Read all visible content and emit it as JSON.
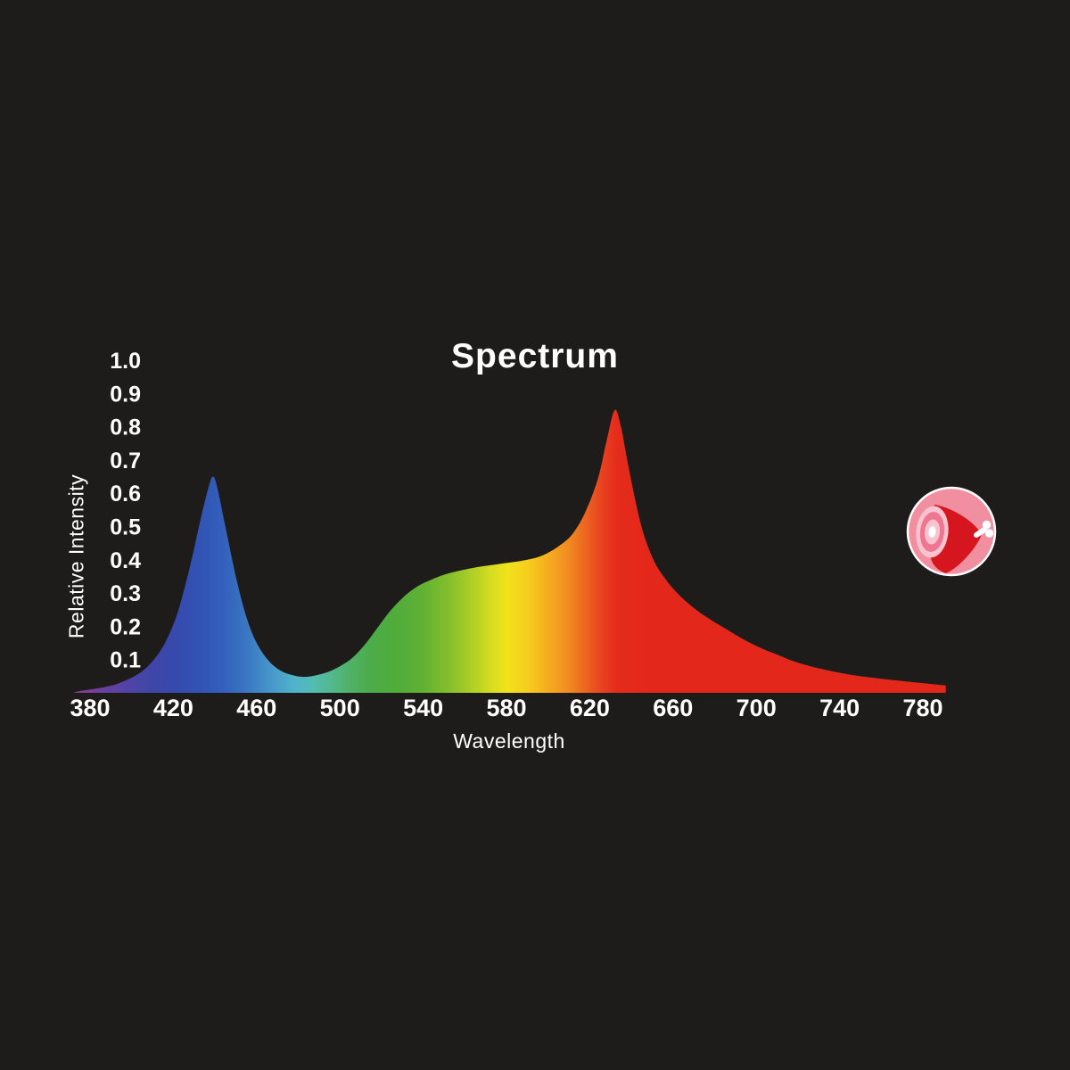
{
  "page": {
    "background": "#1E1C1A",
    "text_color": "#FFFFFF"
  },
  "chart_data": {
    "type": "area",
    "title": "Spectrum",
    "xlabel": "Wavelength",
    "ylabel": "Relative Intensity",
    "xlim": [
      372,
      791
    ],
    "ylim": [
      0,
      1.0
    ],
    "x_ticks": [
      380,
      420,
      460,
      500,
      540,
      580,
      620,
      660,
      700,
      740,
      780
    ],
    "y_ticks": [
      0.1,
      0.2,
      0.3,
      0.4,
      0.5,
      0.6,
      0.7,
      0.8,
      0.9,
      1.0
    ],
    "grid": false,
    "legend": false,
    "peaks": [
      {
        "x": 439,
        "y": 0.65,
        "label": "blue peak"
      },
      {
        "x": 632,
        "y": 0.85,
        "label": "red peak"
      }
    ],
    "points": [
      [
        372,
        0
      ],
      [
        374,
        0.004
      ],
      [
        380,
        0.01
      ],
      [
        386,
        0.016
      ],
      [
        392,
        0.025
      ],
      [
        398,
        0.04
      ],
      [
        404,
        0.06
      ],
      [
        410,
        0.095
      ],
      [
        416,
        0.15
      ],
      [
        422,
        0.24
      ],
      [
        428,
        0.38
      ],
      [
        433,
        0.52
      ],
      [
        437,
        0.62
      ],
      [
        439,
        0.65
      ],
      [
        441,
        0.62
      ],
      [
        445,
        0.5
      ],
      [
        450,
        0.35
      ],
      [
        455,
        0.23
      ],
      [
        460,
        0.15
      ],
      [
        466,
        0.095
      ],
      [
        472,
        0.065
      ],
      [
        478,
        0.052
      ],
      [
        483,
        0.048
      ],
      [
        488,
        0.052
      ],
      [
        494,
        0.062
      ],
      [
        500,
        0.08
      ],
      [
        506,
        0.105
      ],
      [
        512,
        0.145
      ],
      [
        518,
        0.195
      ],
      [
        524,
        0.245
      ],
      [
        530,
        0.285
      ],
      [
        536,
        0.315
      ],
      [
        542,
        0.335
      ],
      [
        550,
        0.355
      ],
      [
        558,
        0.368
      ],
      [
        566,
        0.378
      ],
      [
        574,
        0.385
      ],
      [
        582,
        0.392
      ],
      [
        590,
        0.4
      ],
      [
        598,
        0.415
      ],
      [
        606,
        0.445
      ],
      [
        612,
        0.48
      ],
      [
        618,
        0.545
      ],
      [
        624,
        0.645
      ],
      [
        628,
        0.755
      ],
      [
        632,
        0.85
      ],
      [
        635,
        0.8
      ],
      [
        638,
        0.7
      ],
      [
        642,
        0.575
      ],
      [
        646,
        0.475
      ],
      [
        651,
        0.395
      ],
      [
        656,
        0.345
      ],
      [
        662,
        0.3
      ],
      [
        670,
        0.255
      ],
      [
        678,
        0.22
      ],
      [
        686,
        0.19
      ],
      [
        694,
        0.16
      ],
      [
        702,
        0.135
      ],
      [
        710,
        0.115
      ],
      [
        718,
        0.095
      ],
      [
        726,
        0.08
      ],
      [
        734,
        0.068
      ],
      [
        742,
        0.058
      ],
      [
        750,
        0.05
      ],
      [
        758,
        0.044
      ],
      [
        766,
        0.038
      ],
      [
        774,
        0.033
      ],
      [
        782,
        0.028
      ],
      [
        788,
        0.024
      ],
      [
        791,
        0.022
      ]
    ],
    "gradient_stops": [
      {
        "nm": 372,
        "color": "#8E3A96"
      },
      {
        "nm": 384,
        "color": "#71409F"
      },
      {
        "nm": 396,
        "color": "#5542A6"
      },
      {
        "nm": 408,
        "color": "#4146A8"
      },
      {
        "nm": 420,
        "color": "#3749AC"
      },
      {
        "nm": 432,
        "color": "#3153B4"
      },
      {
        "nm": 444,
        "color": "#3360BC"
      },
      {
        "nm": 456,
        "color": "#3B78C4"
      },
      {
        "nm": 468,
        "color": "#489ACB"
      },
      {
        "nm": 478,
        "color": "#50B3CB"
      },
      {
        "nm": 487,
        "color": "#53BCB2"
      },
      {
        "nm": 496,
        "color": "#53B88C"
      },
      {
        "nm": 505,
        "color": "#50B166"
      },
      {
        "nm": 514,
        "color": "#4CAC4B"
      },
      {
        "nm": 526,
        "color": "#4FAC3C"
      },
      {
        "nm": 540,
        "color": "#62B133"
      },
      {
        "nm": 552,
        "color": "#84BE2D"
      },
      {
        "nm": 562,
        "color": "#A9CC27"
      },
      {
        "nm": 572,
        "color": "#D4DC20"
      },
      {
        "nm": 580,
        "color": "#F0E31C"
      },
      {
        "nm": 590,
        "color": "#F6CE1D"
      },
      {
        "nm": 600,
        "color": "#F5AD1F"
      },
      {
        "nm": 610,
        "color": "#F18A21"
      },
      {
        "nm": 618,
        "color": "#EC6520"
      },
      {
        "nm": 626,
        "color": "#E74220"
      },
      {
        "nm": 633,
        "color": "#E52C1B"
      },
      {
        "nm": 650,
        "color": "#E3271B"
      },
      {
        "nm": 791,
        "color": "#E3271B"
      }
    ]
  },
  "icon": {
    "name": "ham-meat-icon",
    "colors": {
      "circle": "#F18FA0",
      "circle_border": "#FFFFFF",
      "ring_outer": "#F8C2CE",
      "ring_mid": "#EE7693",
      "ring_inner": "#F8C2CE",
      "center": "#FFFFFF",
      "meat": "#D5161E",
      "bone": "#FFFFFF"
    }
  }
}
